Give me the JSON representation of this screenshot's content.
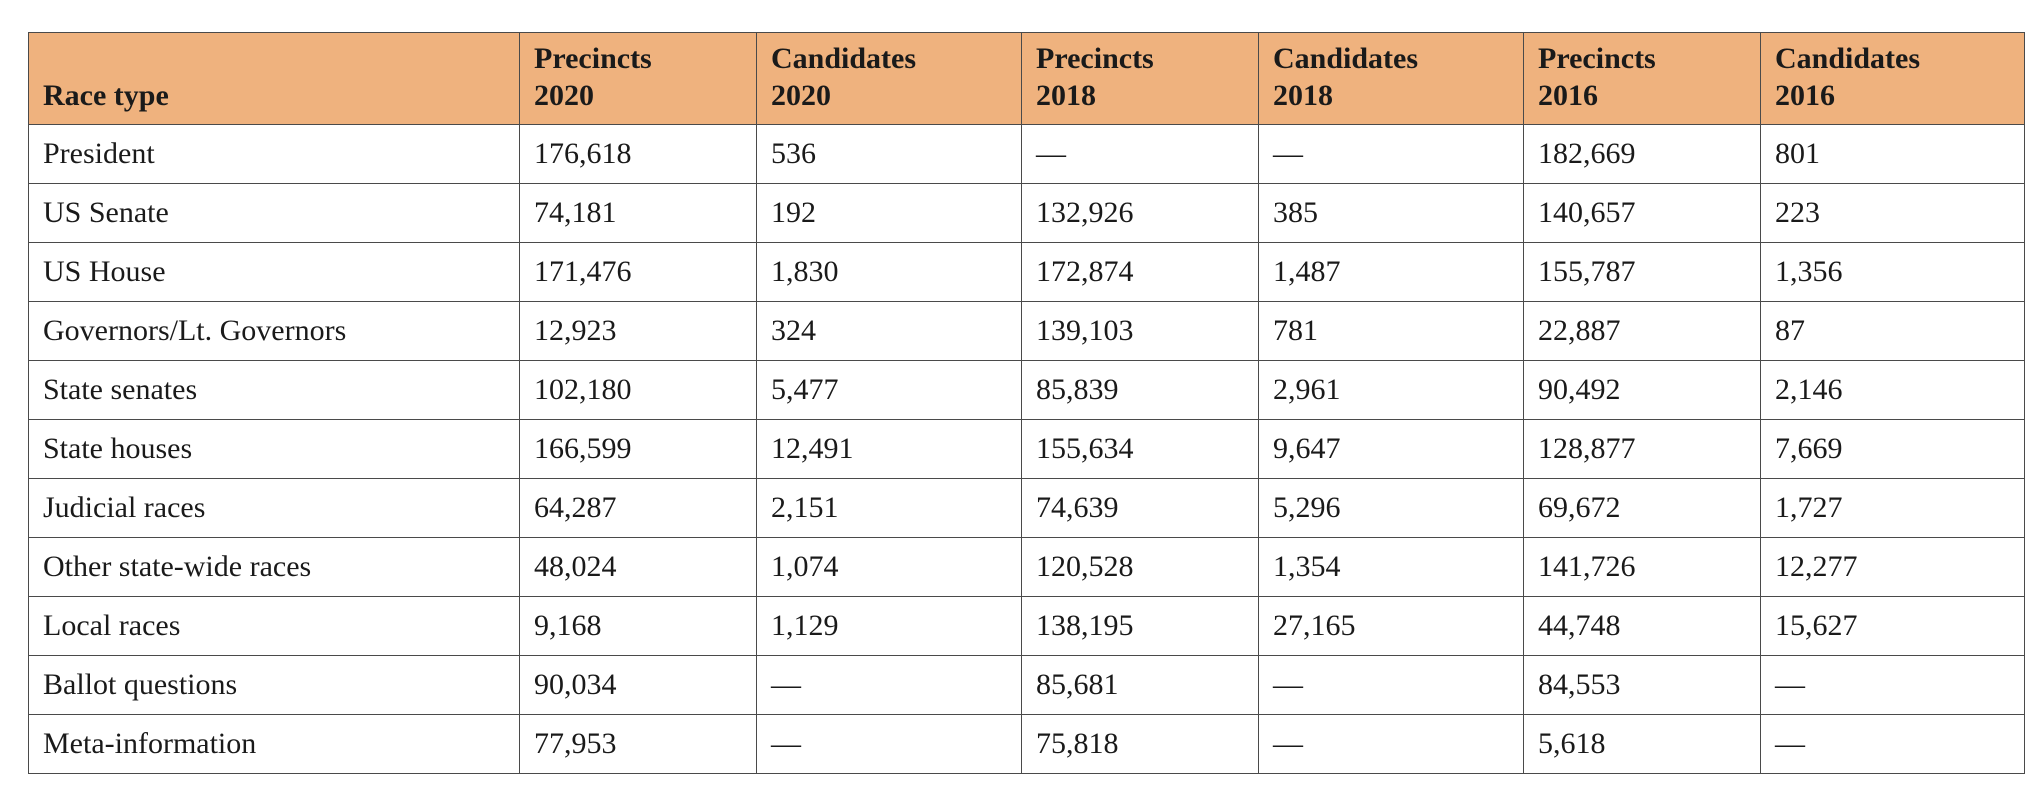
{
  "table": {
    "header": {
      "race_type": "Race type",
      "columns": [
        {
          "line1": "Precincts",
          "line2": "2020"
        },
        {
          "line1": "Candidates",
          "line2": "2020"
        },
        {
          "line1": "Precincts",
          "line2": "2018"
        },
        {
          "line1": "Candidates",
          "line2": "2018"
        },
        {
          "line1": "Precincts",
          "line2": "2016"
        },
        {
          "line1": "Candidates",
          "line2": "2016"
        }
      ]
    },
    "rows": [
      [
        "President",
        "176,618",
        "536",
        "—",
        "—",
        "182,669",
        "801"
      ],
      [
        "US Senate",
        "74,181",
        "192",
        "132,926",
        "385",
        "140,657",
        "223"
      ],
      [
        "US House",
        "171,476",
        "1,830",
        "172,874",
        "1,487",
        "155,787",
        "1,356"
      ],
      [
        "Governors/Lt. Governors",
        "12,923",
        "324",
        "139,103",
        "781",
        "22,887",
        "87"
      ],
      [
        "State senates",
        "102,180",
        "5,477",
        "85,839",
        "2,961",
        "90,492",
        "2,146"
      ],
      [
        "State houses",
        "166,599",
        "12,491",
        "155,634",
        "9,647",
        "128,877",
        "7,669"
      ],
      [
        "Judicial races",
        "64,287",
        "2,151",
        "74,639",
        "5,296",
        "69,672",
        "1,727"
      ],
      [
        "Other state-wide races",
        "48,024",
        "1,074",
        "120,528",
        "1,354",
        "141,726",
        "12,277"
      ],
      [
        "Local races",
        "9,168",
        "1,129",
        "138,195",
        "27,165",
        "44,748",
        "15,627"
      ],
      [
        "Ballot questions",
        "90,034",
        "—",
        "85,681",
        "—",
        "84,553",
        "—"
      ],
      [
        "Meta-information",
        "77,953",
        "—",
        "75,818",
        "—",
        "5,618",
        "—"
      ]
    ]
  },
  "colors": {
    "header_background": "#efb27e",
    "border": "#4a4a4a",
    "text": "#1a1a1a"
  }
}
